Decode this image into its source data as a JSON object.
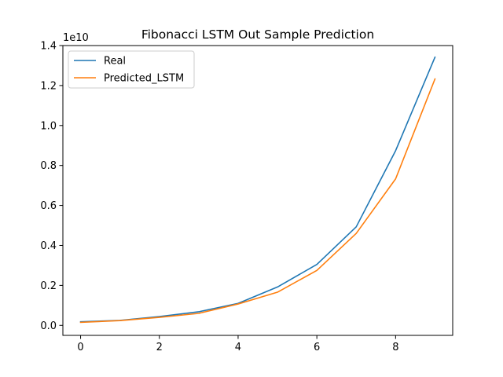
{
  "chart_data": {
    "type": "line",
    "title": "Fibonacci LSTM Out Sample Prediction",
    "xlabel": "",
    "ylabel": "",
    "y_offset_label": "1e10",
    "xlim": [
      -0.45,
      9.45
    ],
    "ylim": [
      -0.05,
      1.4
    ],
    "x_ticks": [
      0,
      2,
      4,
      6,
      8
    ],
    "x_tick_labels": [
      "0",
      "2",
      "4",
      "6",
      "8"
    ],
    "y_ticks": [
      0.0,
      0.2,
      0.4,
      0.6,
      0.8,
      1.0,
      1.2,
      1.4
    ],
    "y_tick_labels": [
      "0.0",
      "0.2",
      "0.4",
      "0.6",
      "0.8",
      "1.0",
      "1.2",
      "1.4"
    ],
    "grid": false,
    "legend_position": "upper-left",
    "x": [
      0,
      1,
      2,
      3,
      4,
      5,
      6,
      7,
      8,
      9
    ],
    "series": [
      {
        "name": "Real",
        "color": "#1f77b4",
        "values": [
          0.018,
          0.025,
          0.044,
          0.068,
          0.11,
          0.192,
          0.305,
          0.493,
          0.874,
          1.342
        ]
      },
      {
        "name": "Predicted_LSTM",
        "color": "#ff7f0e",
        "values": [
          0.015,
          0.024,
          0.04,
          0.06,
          0.107,
          0.166,
          0.275,
          0.46,
          0.733,
          1.233
        ]
      }
    ]
  }
}
